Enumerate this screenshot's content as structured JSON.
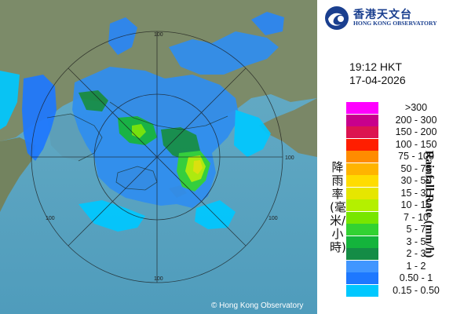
{
  "header": {
    "org_name_zh": "香港天文台",
    "org_name_en": "HONG KONG OBSERVATORY",
    "logo_icon": "hko-logo-icon"
  },
  "observation": {
    "time": "19:12 HKT",
    "date": "17-04-2026"
  },
  "legend": {
    "title_zh": "降雨率(毫米/小時)",
    "title_en": "Rainfall Rate (mm/h)",
    "items": [
      {
        "label": ">300",
        "color": "#ff00ff"
      },
      {
        "label": "200 - 300",
        "color": "#c8008c"
      },
      {
        "label": "150 - 200",
        "color": "#dc1450"
      },
      {
        "label": "100 - 150",
        "color": "#ff1e00"
      },
      {
        "label": "75 - 100",
        "color": "#ff8c00"
      },
      {
        "label": "50 - 75",
        "color": "#ffb400"
      },
      {
        "label": "30 - 50",
        "color": "#ffdc00"
      },
      {
        "label": "15 - 30",
        "color": "#e6e600"
      },
      {
        "label": "10 - 15",
        "color": "#b4f000"
      },
      {
        "label": "7 - 10",
        "color": "#78e600"
      },
      {
        "label": "5 - 7",
        "color": "#32d232"
      },
      {
        "label": "3 - 5",
        "color": "#14b43c"
      },
      {
        "label": "2 - 3",
        "color": "#148c46"
      },
      {
        "label": "1 - 2",
        "color": "#4196ff"
      },
      {
        "label": "0.50 - 1",
        "color": "#1e78ff"
      },
      {
        "label": "0.15 - 0.50",
        "color": "#00c8ff"
      }
    ]
  },
  "map": {
    "range_ring_labels": [
      "100",
      "100",
      "100",
      "100",
      "100"
    ],
    "copyright": "© Hong Kong Observatory",
    "colors": {
      "sea": "#5fa9c3",
      "land": "#7d8c6a"
    }
  }
}
